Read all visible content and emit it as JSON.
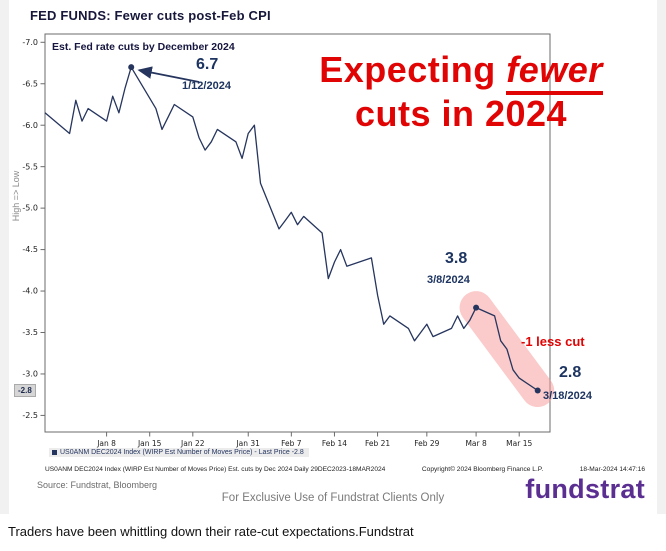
{
  "page": {
    "title": "FED FUNDS: Fewer cuts post-Feb CPI",
    "caption": "Traders have been whittling down their rate-cut expectations.Fundstrat"
  },
  "chart": {
    "inner_title": "Est. Fed rate cuts by December 2024",
    "y_axis_direction_label": "High => Low",
    "legend_label": "US0ANM DEC2024 Index (WIRP Est Number of Moves Price) - Last Price -2.8",
    "last_price_tag": "-2.8",
    "annotations": {
      "peak_value": "6.7",
      "peak_date": "1/12/2024",
      "headline_pre": "Expecting ",
      "headline_emph": "fewer",
      "headline_line2": "cuts in 2024",
      "mar8_value": "3.8",
      "mar8_date": "3/8/2024",
      "less_cut": "-1 less cut",
      "mar18_value": "2.8",
      "mar18_date": "3/18/2024"
    },
    "bloomberg_footer": {
      "left": "US0ANM DEC2024 Index (WIRP Est Number of Moves Price) Est. cuts by Dec 2024  Daily 29DEC2023-18MAR2024",
      "mid": "Copyright© 2024 Bloomberg Finance L.P.",
      "right": "18-Mar-2024 14:47:16"
    },
    "source_line": "Source: Fundstrat, Bloomberg",
    "exclusive_line": "For Exclusive Use of Fundstrat Clients Only",
    "logo_text": "fundstrat",
    "colors": {
      "line": "#26355e",
      "accent_red": "#e00404",
      "highlight_pink": "rgba(247,150,150,0.5)",
      "logo_purple": "#5b2e91"
    }
  },
  "chart_data": {
    "type": "line",
    "title": "Est. Fed rate cuts by December 2024",
    "x_year_label": "2024",
    "x_ticks": [
      "Jan 8",
      "Jan 15",
      "Jan 22",
      "Jan 31",
      "Feb 7",
      "Feb 14",
      "Feb 21",
      "Feb 29",
      "Mar 8",
      "Mar 15"
    ],
    "x_tick_dates": [
      "1/8",
      "1/15",
      "1/22",
      "1/31",
      "2/7",
      "2/14",
      "2/21",
      "2/29",
      "3/8",
      "3/15"
    ],
    "y_ticks": [
      -7.0,
      -6.5,
      -6.0,
      -5.5,
      -5.0,
      -4.5,
      -4.0,
      -3.5,
      -3.0,
      -2.5
    ],
    "y_range_plot": [
      -7.1,
      -2.3
    ],
    "x_range_days": [
      0,
      82
    ],
    "grid": false,
    "legend_position": "bottom-left-inside",
    "last_price": -2.8,
    "annotated_points": [
      {
        "date": "1/12",
        "value": -6.7
      },
      {
        "date": "3/8",
        "value": -3.8
      },
      {
        "date": "3/18",
        "value": -2.8
      }
    ],
    "series": [
      {
        "name": "US0ANM DEC2024 Index (WIRP Est Number of Moves Price)",
        "points": [
          {
            "date": "12/29",
            "value": -6.15
          },
          {
            "date": "1/2",
            "value": -5.9
          },
          {
            "date": "1/3",
            "value": -6.3
          },
          {
            "date": "1/4",
            "value": -6.05
          },
          {
            "date": "1/5",
            "value": -6.2
          },
          {
            "date": "1/8",
            "value": -6.05
          },
          {
            "date": "1/9",
            "value": -6.35
          },
          {
            "date": "1/10",
            "value": -6.15
          },
          {
            "date": "1/11",
            "value": -6.45
          },
          {
            "date": "1/12",
            "value": -6.7
          },
          {
            "date": "1/16",
            "value": -6.2
          },
          {
            "date": "1/17",
            "value": -5.95
          },
          {
            "date": "1/18",
            "value": -6.1
          },
          {
            "date": "1/19",
            "value": -6.25
          },
          {
            "date": "1/22",
            "value": -6.1
          },
          {
            "date": "1/23",
            "value": -5.85
          },
          {
            "date": "1/24",
            "value": -5.7
          },
          {
            "date": "1/25",
            "value": -5.8
          },
          {
            "date": "1/26",
            "value": -5.95
          },
          {
            "date": "1/29",
            "value": -5.8
          },
          {
            "date": "1/30",
            "value": -5.6
          },
          {
            "date": "1/31",
            "value": -5.9
          },
          {
            "date": "2/1",
            "value": -6.0
          },
          {
            "date": "2/2",
            "value": -5.3
          },
          {
            "date": "2/5",
            "value": -4.75
          },
          {
            "date": "2/6",
            "value": -4.85
          },
          {
            "date": "2/7",
            "value": -4.95
          },
          {
            "date": "2/8",
            "value": -4.8
          },
          {
            "date": "2/9",
            "value": -4.9
          },
          {
            "date": "2/12",
            "value": -4.7
          },
          {
            "date": "2/13",
            "value": -4.15
          },
          {
            "date": "2/14",
            "value": -4.35
          },
          {
            "date": "2/15",
            "value": -4.5
          },
          {
            "date": "2/16",
            "value": -4.3
          },
          {
            "date": "2/20",
            "value": -4.4
          },
          {
            "date": "2/21",
            "value": -3.95
          },
          {
            "date": "2/22",
            "value": -3.6
          },
          {
            "date": "2/23",
            "value": -3.7
          },
          {
            "date": "2/26",
            "value": -3.55
          },
          {
            "date": "2/27",
            "value": -3.4
          },
          {
            "date": "2/28",
            "value": -3.5
          },
          {
            "date": "2/29",
            "value": -3.6
          },
          {
            "date": "3/1",
            "value": -3.45
          },
          {
            "date": "3/4",
            "value": -3.55
          },
          {
            "date": "3/5",
            "value": -3.7
          },
          {
            "date": "3/6",
            "value": -3.55
          },
          {
            "date": "3/7",
            "value": -3.65
          },
          {
            "date": "3/8",
            "value": -3.8
          },
          {
            "date": "3/11",
            "value": -3.7
          },
          {
            "date": "3/12",
            "value": -3.4
          },
          {
            "date": "3/13",
            "value": -3.3
          },
          {
            "date": "3/14",
            "value": -3.05
          },
          {
            "date": "3/15",
            "value": -2.95
          },
          {
            "date": "3/18",
            "value": -2.8
          }
        ]
      }
    ]
  }
}
